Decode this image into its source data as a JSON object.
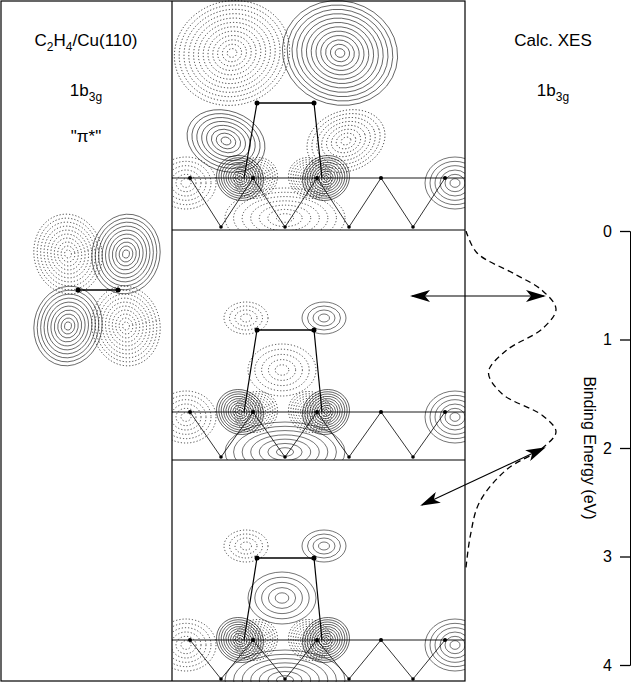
{
  "figure": {
    "left_panel": {
      "system": "C2H4/Cu(110)",
      "orbital": "1b3g",
      "label": "\"π*\""
    }
  },
  "chart_data": {
    "type": "line",
    "title": "Calc. XES",
    "subtitle": "1b3g",
    "y_label": "Binding Energy (eV)",
    "ylim": [
      0,
      4
    ],
    "yticks": [
      0,
      1,
      2,
      3,
      4
    ],
    "xlim": [
      0,
      1
    ],
    "y": [
      0,
      0.2,
      0.4,
      0.55,
      0.72,
      0.9,
      1.1,
      1.3,
      1.5,
      1.7,
      1.85,
      2.0,
      2.2,
      2.5,
      2.8,
      3.1
    ],
    "values": [
      0.0,
      0.12,
      0.55,
      0.85,
      1.0,
      0.85,
      0.45,
      0.25,
      0.4,
      0.85,
      1.0,
      0.85,
      0.45,
      0.15,
      0.05,
      0.0
    ],
    "line_style": "dashed",
    "tick_labels": "y",
    "grid": false
  }
}
